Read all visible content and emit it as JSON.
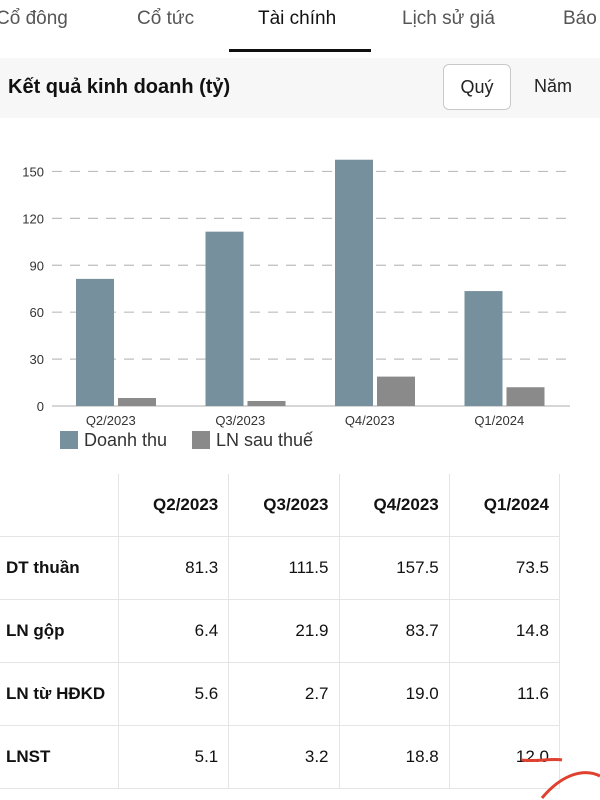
{
  "tabs": [
    {
      "label": "Cổ đông"
    },
    {
      "label": "Cổ tức"
    },
    {
      "label": "Tài chính",
      "active": true
    },
    {
      "label": "Lịch sử giá"
    },
    {
      "label": "Báo"
    }
  ],
  "section": {
    "title": "Kết quả kinh doanh (tỷ)",
    "period_options": [
      "Quý",
      "Năm"
    ],
    "selected_period": "Quý"
  },
  "colors": {
    "revenue": "#76909d",
    "profit": "#8a8a8a",
    "annotation": "#e0412f"
  },
  "chart_data": {
    "type": "bar",
    "title": "",
    "xlabel": "",
    "ylabel": "",
    "categories": [
      "Q2/2023",
      "Q3/2023",
      "Q4/2023",
      "Q1/2024"
    ],
    "series": [
      {
        "name": "Doanh thu",
        "values": [
          81.3,
          111.5,
          157.5,
          73.5
        ]
      },
      {
        "name": "LN sau thuế",
        "values": [
          5.1,
          3.2,
          18.8,
          12.0
        ]
      }
    ],
    "ylim": [
      0,
      165
    ],
    "yticks": [
      0,
      30,
      60,
      90,
      120,
      150
    ],
    "grid": true,
    "legend_position": "bottom-left"
  },
  "table": {
    "columns": [
      "Q2/2023",
      "Q3/2023",
      "Q4/2023",
      "Q1/2024"
    ],
    "rows": [
      {
        "label": "DT thuần",
        "values": [
          "81.3",
          "111.5",
          "157.5",
          "73.5"
        ]
      },
      {
        "label": "LN gộp",
        "values": [
          "6.4",
          "21.9",
          "83.7",
          "14.8"
        ]
      },
      {
        "label": "LN từ HĐKD",
        "values": [
          "5.6",
          "2.7",
          "19.0",
          "11.6"
        ]
      },
      {
        "label": "LNST",
        "values": [
          "5.1",
          "3.2",
          "18.8",
          "12.0"
        ]
      }
    ]
  }
}
